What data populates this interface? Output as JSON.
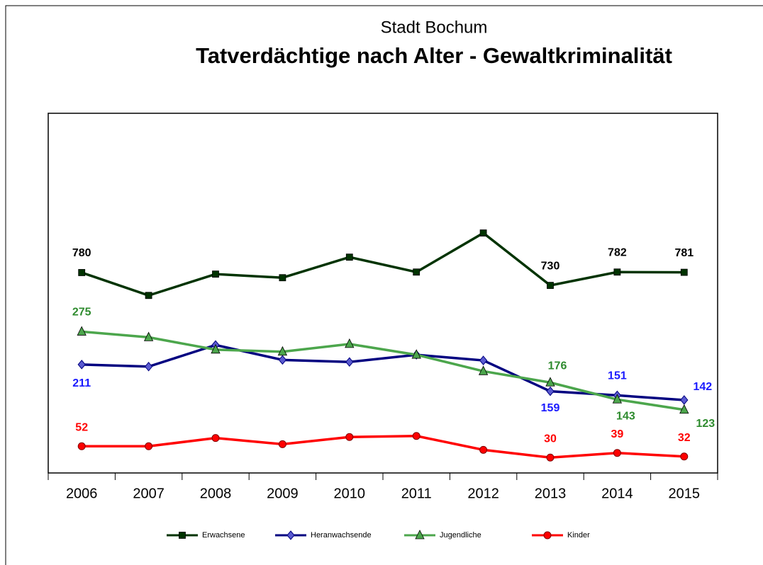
{
  "chart_data": {
    "type": "line",
    "subtitle": "Stadt Bochum",
    "title": "Tatverdächtige nach Alter - Gewaltkriminalität",
    "categories": [
      "2006",
      "2007",
      "2008",
      "2009",
      "2010",
      "2011",
      "2012",
      "2013",
      "2014",
      "2015"
    ],
    "ylim": [
      0,
      700
    ],
    "y2lim": [
      0,
      1400
    ],
    "series": [
      {
        "name": "Erwachsene",
        "color": "#003300",
        "label_color": "#000000",
        "marker": "square",
        "axis": "y2",
        "values": [
          780,
          691,
          774,
          760,
          840,
          782,
          934,
          730,
          782,
          781
        ],
        "value_labels": [
          "780",
          null,
          null,
          null,
          null,
          null,
          null,
          "730",
          "782",
          "781"
        ]
      },
      {
        "name": "Heranwachsende",
        "color": "#000080",
        "label_color": "#1a1aff",
        "marker": "diamond",
        "values": [
          211,
          207,
          249,
          220,
          216,
          230,
          219,
          159,
          151,
          142
        ],
        "value_labels": [
          "211",
          null,
          null,
          null,
          null,
          null,
          null,
          "159",
          "151",
          "142"
        ]
      },
      {
        "name": "Jugendliche",
        "color": "#4ca64c",
        "label_color": "#2e8b2e",
        "marker": "triangle",
        "values": [
          275,
          264,
          240,
          236,
          251,
          230,
          198,
          176,
          143,
          123
        ],
        "value_labels": [
          "275",
          null,
          null,
          null,
          null,
          null,
          null,
          "176",
          "143",
          "123"
        ]
      },
      {
        "name": "Kinder",
        "color": "#ff0000",
        "label_color": "#ff0000",
        "marker": "circle",
        "values": [
          52,
          52,
          68,
          56,
          70,
          72,
          45,
          30,
          39,
          32
        ],
        "value_labels": [
          "52",
          null,
          null,
          null,
          null,
          null,
          null,
          "30",
          "39",
          "32"
        ]
      }
    ]
  }
}
